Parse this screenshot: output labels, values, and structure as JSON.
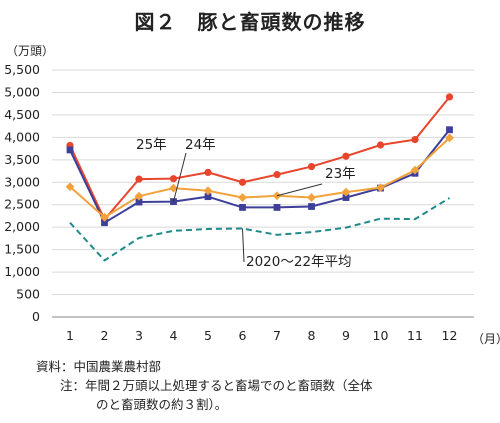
{
  "title": "図２　豚と畜頭数の推移",
  "units": {
    "y": "（万頭）",
    "x": "（月）"
  },
  "notes": {
    "source": "資料：中国農業農村部",
    "note_line1": "注：年間２万頭以上処理すると畜場でのと畜頭数（全体",
    "note_line2": "のと畜頭数の約３割）。"
  },
  "chart_data": {
    "type": "line",
    "categories": [
      "1",
      "2",
      "3",
      "4",
      "5",
      "6",
      "7",
      "8",
      "9",
      "10",
      "11",
      "12"
    ],
    "ylim": [
      0,
      5500
    ],
    "yticks": [
      0,
      500,
      1000,
      1500,
      2000,
      2500,
      3000,
      3500,
      4000,
      4500,
      5000,
      5500
    ],
    "ytick_labels": [
      "0",
      "500",
      "1,000",
      "1,500",
      "2,000",
      "2,500",
      "3,000",
      "3,500",
      "4,000",
      "4,500",
      "5,000",
      "5,500"
    ],
    "grid": true,
    "series": [
      {
        "name": "25年",
        "color": "#e8452c",
        "marker": "circle",
        "values": [
          3820,
          2170,
          3070,
          3080,
          3220,
          3000,
          3170,
          3350,
          3580,
          3830,
          3950,
          4900
        ]
      },
      {
        "name": "24年",
        "color": "#3d3f99",
        "marker": "square",
        "values": [
          3720,
          2100,
          2560,
          2570,
          2680,
          2440,
          2440,
          2460,
          2660,
          2870,
          3200,
          4170
        ]
      },
      {
        "name": "23年",
        "color": "#f2a23b",
        "marker": "diamond",
        "values": [
          2900,
          2220,
          2690,
          2870,
          2810,
          2660,
          2700,
          2660,
          2780,
          2880,
          3270,
          3990
        ]
      },
      {
        "name": "2020～22年平均",
        "color": "#1f8a8a",
        "marker": "none",
        "dash": true,
        "values": [
          2100,
          1260,
          1760,
          1920,
          1960,
          1970,
          1830,
          1890,
          1990,
          2190,
          2180,
          2650
        ]
      }
    ]
  }
}
